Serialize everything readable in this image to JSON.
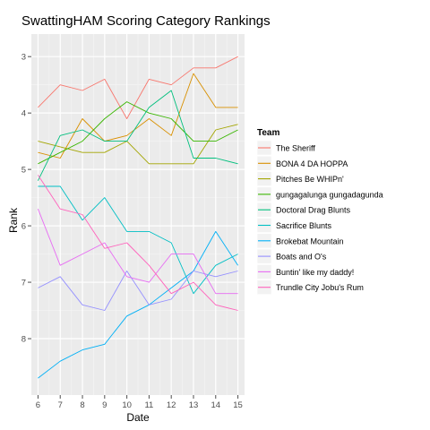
{
  "chart_data": {
    "type": "line",
    "title": "SwattingHAM Scoring Category Rankings",
    "xlabel": "Date",
    "ylabel": "Rank",
    "x": [
      6,
      7,
      8,
      9,
      10,
      11,
      12,
      13,
      14,
      15
    ],
    "x_ticks": [
      "6",
      "7",
      "8",
      "9",
      "10",
      "11",
      "12",
      "13",
      "14",
      "15"
    ],
    "y_ticks": [
      "3",
      "4",
      "5",
      "6",
      "7",
      "8"
    ],
    "xlim": [
      5.7,
      15.3
    ],
    "ylim": [
      2.6,
      9.0
    ],
    "y_reversed": true,
    "grid": true,
    "legend_position": "right",
    "legend_title": "Team",
    "series": [
      {
        "name": "The  Sheriff",
        "color": "#F8766D",
        "values": [
          3.9,
          3.5,
          3.6,
          3.4,
          4.1,
          3.4,
          3.5,
          3.2,
          3.2,
          3.0
        ]
      },
      {
        "name": "BONA 4 DA HOPPA",
        "color": "#D89000",
        "values": [
          4.7,
          4.8,
          4.1,
          4.5,
          4.4,
          4.1,
          4.4,
          3.3,
          3.9,
          3.9
        ]
      },
      {
        "name": "Pitches  Be WHIPn'",
        "color": "#A3A500",
        "values": [
          4.5,
          4.6,
          4.7,
          4.7,
          4.5,
          4.9,
          4.9,
          4.9,
          4.3,
          4.2
        ]
      },
      {
        "name": "gungagalunga gungadagunda",
        "color": "#39B600",
        "values": [
          4.9,
          4.7,
          4.5,
          4.1,
          3.8,
          4.0,
          4.1,
          4.5,
          4.5,
          4.3
        ]
      },
      {
        "name": "Doctoral Drag Blunts",
        "color": "#00BF7D",
        "values": [
          5.2,
          4.4,
          4.3,
          4.5,
          4.5,
          3.9,
          3.6,
          4.8,
          4.8,
          4.9
        ]
      },
      {
        "name": "Sacrifice Blunts",
        "color": "#00BFC4",
        "values": [
          5.3,
          5.3,
          5.9,
          5.5,
          6.1,
          6.1,
          6.3,
          7.2,
          6.7,
          6.5
        ]
      },
      {
        "name": "Brokebat Mountain",
        "color": "#00B0F6",
        "values": [
          8.7,
          8.4,
          8.2,
          8.1,
          7.6,
          7.4,
          7.1,
          6.8,
          6.1,
          6.7
        ]
      },
      {
        "name": "Boats and O's",
        "color": "#9590FF",
        "values": [
          7.1,
          6.9,
          7.4,
          7.5,
          6.8,
          7.4,
          7.3,
          6.8,
          6.9,
          6.8
        ]
      },
      {
        "name": "Buntin' like my daddy!",
        "color": "#E76BF3",
        "values": [
          5.7,
          6.7,
          6.5,
          6.3,
          6.9,
          7.0,
          6.5,
          6.5,
          7.2,
          7.2
        ]
      },
      {
        "name": "Trundle City Jobu's Rum",
        "color": "#FF62BC",
        "values": [
          5.1,
          5.7,
          5.8,
          6.4,
          6.3,
          6.7,
          7.2,
          7.0,
          7.4,
          7.5
        ]
      }
    ]
  },
  "colors": {
    "panel_background": "#EBEBEB",
    "grid_major": "#ffffff",
    "grid_minor": "#F5F5F5",
    "axis_tick": "#4d4d4d"
  }
}
